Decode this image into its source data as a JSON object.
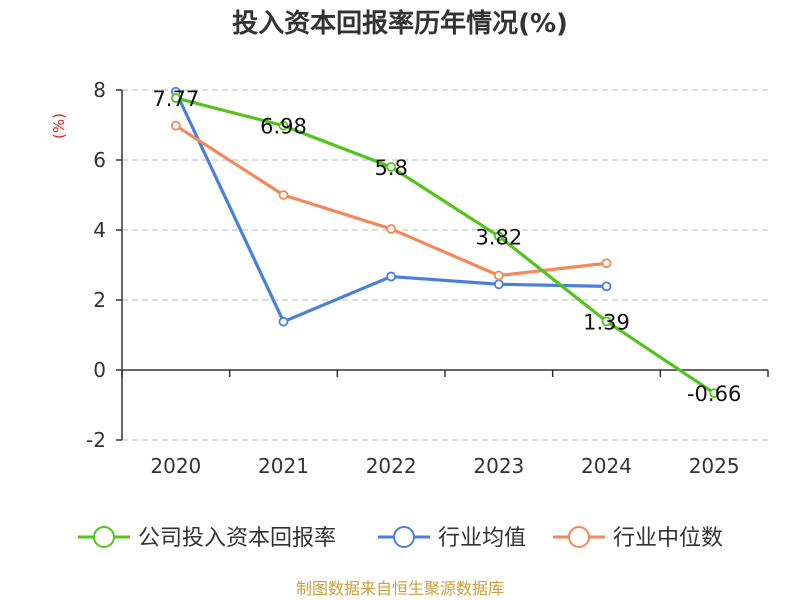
{
  "chart_data": {
    "type": "line",
    "title": "投入资本回报率历年情况(%)",
    "y_unit": "(%)",
    "categories": [
      "2020",
      "2021",
      "2022",
      "2023",
      "2024",
      "2025"
    ],
    "ylim": [
      -2,
      8
    ],
    "yticks": [
      -2,
      0,
      2,
      4,
      6,
      8
    ],
    "grid": true,
    "legend_position": "bottom",
    "series": [
      {
        "name": "公司投入资本回报率",
        "color": "#52c41a",
        "values": [
          7.77,
          6.98,
          5.8,
          3.82,
          1.39,
          -0.66
        ],
        "labels": [
          "7.77",
          "6.98",
          "5.8",
          "3.82",
          "1.39",
          "-0.66"
        ]
      },
      {
        "name": "行业均值",
        "color": "#4a7fdc",
        "values": [
          7.95,
          1.38,
          2.67,
          2.45,
          2.39,
          null
        ]
      },
      {
        "name": "行业中位数",
        "color": "#f5885a",
        "values": [
          6.98,
          5.0,
          4.03,
          2.7,
          3.05,
          null
        ]
      }
    ],
    "source": "制图数据来自恒生聚源数据库"
  }
}
